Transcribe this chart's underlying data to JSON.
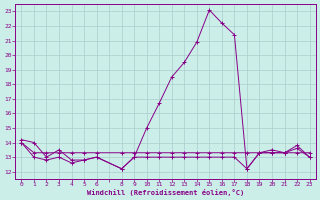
{
  "xlabel": "Windchill (Refroidissement éolien,°C)",
  "background_color": "#cceee8",
  "grid_color": "#aacccc",
  "line_color": "#880088",
  "x_ticks_all": [
    0,
    1,
    2,
    3,
    4,
    5,
    6,
    7,
    8,
    9,
    10,
    11,
    12,
    13,
    14,
    15,
    16,
    17,
    18,
    19,
    20,
    21,
    22,
    23
  ],
  "x_tick_labels": [
    "0",
    "1",
    "2",
    "3",
    "4",
    "5",
    "6",
    "",
    "8",
    "9",
    "10",
    "11",
    "12",
    "13",
    "14",
    "15",
    "16",
    "17",
    "18",
    "19",
    "20",
    "21",
    "22",
    "23"
  ],
  "y_ticks": [
    12,
    13,
    14,
    15,
    16,
    17,
    18,
    19,
    20,
    21,
    22,
    23
  ],
  "ylim": [
    11.5,
    23.5
  ],
  "xlim": [
    -0.5,
    23.5
  ],
  "series1_x": [
    0,
    1,
    2,
    3,
    4,
    5,
    6,
    8,
    9,
    10,
    11,
    12,
    13,
    14,
    15,
    16,
    17,
    18,
    19,
    20,
    21,
    22,
    23
  ],
  "series1_y": [
    14.2,
    14.0,
    13.0,
    13.5,
    12.8,
    12.8,
    13.0,
    12.2,
    13.0,
    15.0,
    16.7,
    18.5,
    19.5,
    20.9,
    23.1,
    22.2,
    21.4,
    12.2,
    13.3,
    13.5,
    13.3,
    13.8,
    13.0
  ],
  "series2_x": [
    0,
    1,
    2,
    3,
    4,
    5,
    6,
    8,
    9,
    10,
    11,
    12,
    13,
    14,
    15,
    16,
    17,
    18,
    19,
    20,
    21,
    22,
    23
  ],
  "series2_y": [
    14.0,
    13.3,
    13.3,
    13.3,
    13.3,
    13.3,
    13.3,
    13.3,
    13.3,
    13.3,
    13.3,
    13.3,
    13.3,
    13.3,
    13.3,
    13.3,
    13.3,
    13.3,
    13.3,
    13.3,
    13.3,
    13.3,
    13.3
  ],
  "series3_x": [
    0,
    1,
    2,
    3,
    4,
    5,
    6,
    8,
    9,
    10,
    11,
    12,
    13,
    14,
    15,
    16,
    17,
    18,
    19,
    20,
    21,
    22,
    23
  ],
  "series3_y": [
    14.0,
    13.0,
    12.8,
    13.0,
    12.6,
    12.8,
    13.0,
    12.2,
    13.0,
    13.0,
    13.0,
    13.0,
    13.0,
    13.0,
    13.0,
    13.0,
    13.0,
    12.2,
    13.3,
    13.3,
    13.3,
    13.6,
    13.0
  ]
}
